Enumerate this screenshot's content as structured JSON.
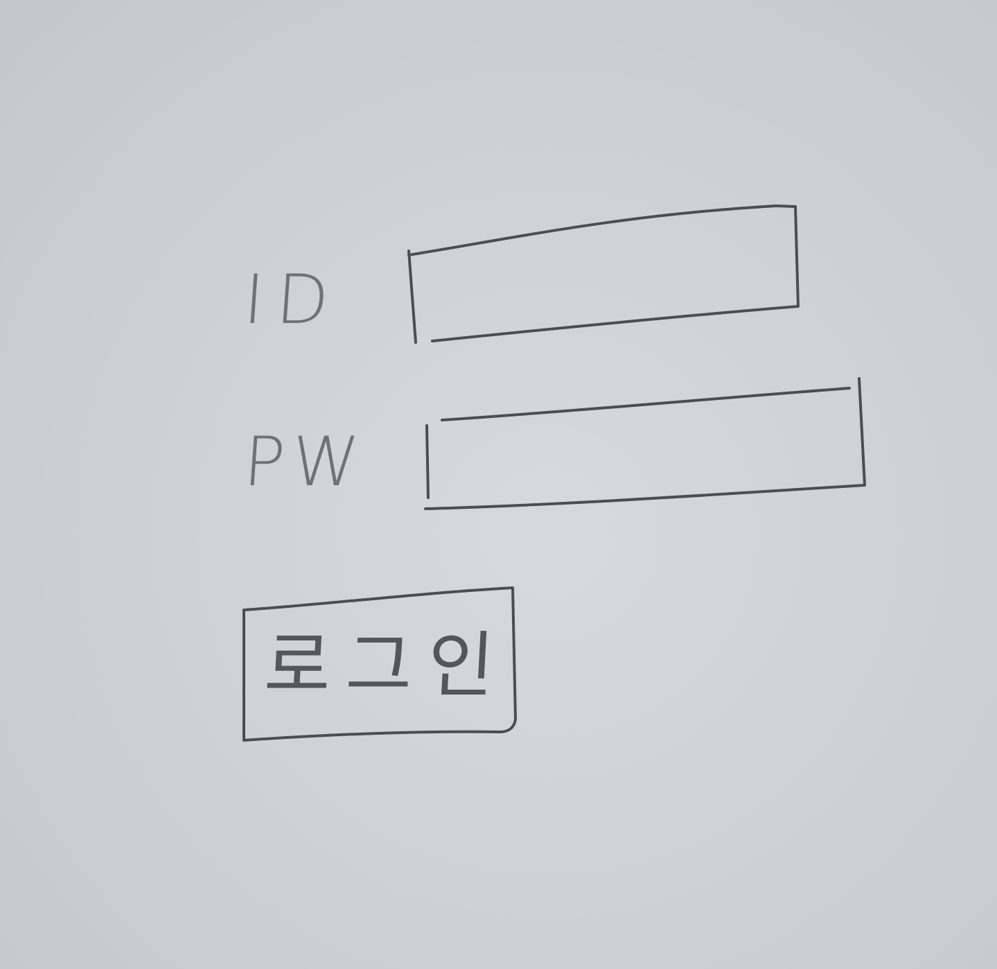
{
  "form": {
    "id_label": "ID",
    "id_value": "",
    "pw_label": "PW",
    "pw_value": "",
    "login_label": "로그인"
  },
  "colors": {
    "paper": "#cfd2d6",
    "ink": "#4a4d52",
    "pencil": "#6e7176"
  }
}
